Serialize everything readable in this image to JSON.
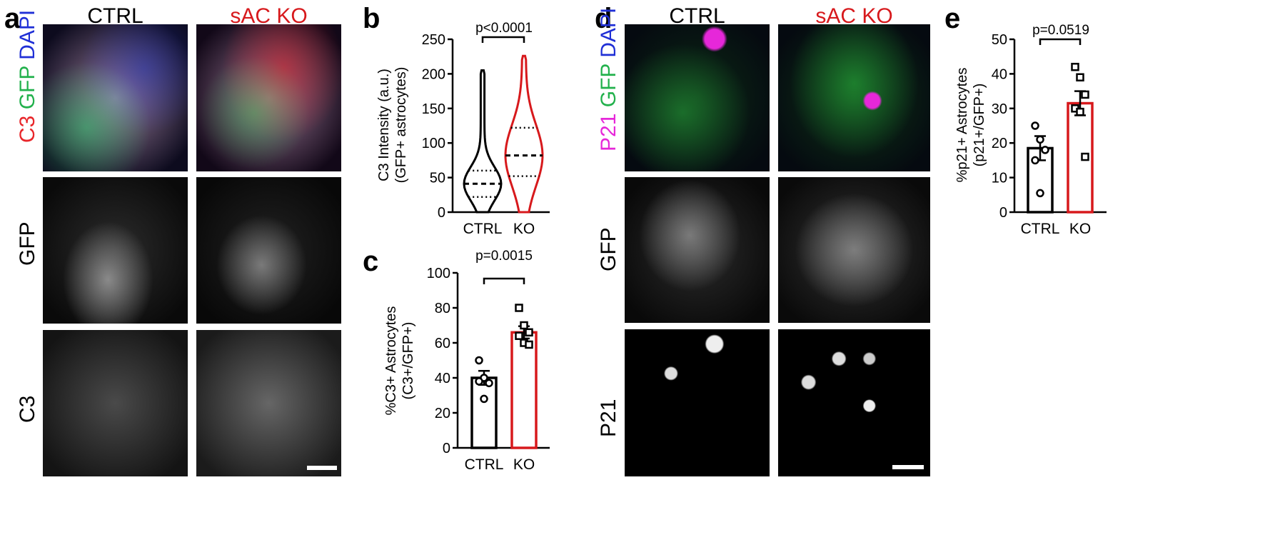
{
  "panel_labels": {
    "a": "a",
    "b": "b",
    "c": "c",
    "d": "d",
    "e": "e"
  },
  "panel_a": {
    "col_titles": [
      "CTRL",
      "sAC KO"
    ],
    "row_labels": {
      "merge": [
        "C3",
        "GFP",
        "DAPI"
      ],
      "gfp": "GFP",
      "c3": "C3"
    }
  },
  "panel_d": {
    "col_titles": [
      "CTRL",
      "sAC KO"
    ],
    "row_labels": {
      "merge": [
        "P21",
        "GFP",
        "DAPI"
      ],
      "gfp": "GFP",
      "p21": "P21"
    }
  },
  "colors": {
    "ctrl": "#000000",
    "ko": "#d7191c",
    "c3": "#e8262a",
    "gfp": "#22b14c",
    "dapi": "#1f2fd6",
    "p21": "#e627d9"
  },
  "chart_data": [
    {
      "id": "b",
      "type": "violin",
      "categories": [
        "CTRL",
        "KO"
      ],
      "ylabel": "C3 Intensity (a.u.)",
      "ylabel2": "(GFP+ astrocytes)",
      "ylim": [
        0,
        250
      ],
      "yticks": [
        0,
        50,
        100,
        150,
        200,
        250
      ],
      "pvalue": "p<0.0001",
      "series": [
        {
          "category": "CTRL",
          "min": 0,
          "max": 205,
          "q1": 22,
          "median": 41,
          "q3": 60
        },
        {
          "category": "KO",
          "min": 0,
          "max": 226,
          "q1": 52,
          "median": 82,
          "q3": 122
        }
      ]
    },
    {
      "id": "c",
      "type": "bar",
      "categories": [
        "CTRL",
        "KO"
      ],
      "ylabel": "%C3+ Astrocytes",
      "ylabel2": "(C3+/GFP+)",
      "ylim": [
        0,
        100
      ],
      "yticks": [
        0,
        20,
        40,
        60,
        80,
        100
      ],
      "pvalue": "p=0.0015",
      "values": [
        40,
        66
      ],
      "sem": [
        4,
        3.5
      ],
      "points": [
        [
          50,
          40,
          37,
          38,
          28
        ],
        [
          80,
          70,
          66,
          64,
          60,
          59
        ]
      ]
    },
    {
      "id": "e",
      "type": "bar",
      "categories": [
        "CTRL",
        "KO"
      ],
      "ylabel": "%p21+ Astrocytes",
      "ylabel2": "(p21+/GFP+)",
      "ylim": [
        0,
        50
      ],
      "yticks": [
        0,
        10,
        20,
        30,
        40,
        50
      ],
      "pvalue": "p=0.0519",
      "values": [
        18.5,
        31.5
      ],
      "sem": [
        3.5,
        3.5
      ],
      "points": [
        [
          25,
          21,
          18,
          15,
          5.5
        ],
        [
          42,
          39,
          34,
          30,
          29,
          16
        ]
      ]
    }
  ]
}
